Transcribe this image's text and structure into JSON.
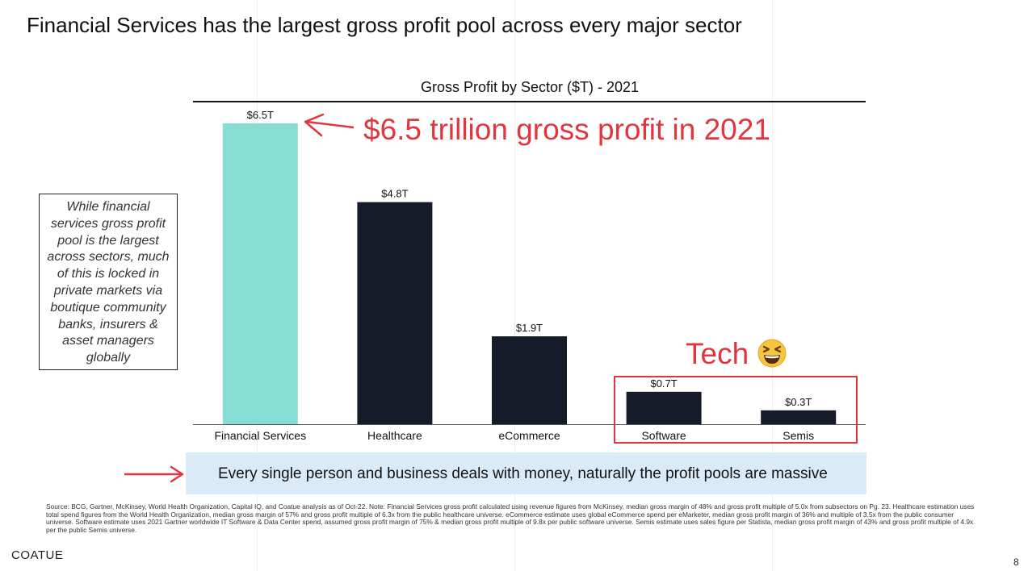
{
  "slide": {
    "title": "Financial Services has the largest gross profit pool across every major sector",
    "page_number": "8",
    "brand": "COATUE",
    "side_note": "While financial services gross profit pool is the largest across sectors, much of this is locked in private markets via boutique community banks, insurers & asset managers globally",
    "annotation": "$6.5 trillion  gross profit in 2021",
    "tech_label": "Tech",
    "tech_emoji": "grinning-squinting-face",
    "callout": "Every single person and business deals with money, naturally the profit pools are massive",
    "source": "Source: BCG, Gartner, McKinsey, World Health Organization, Capital IQ, and Coatue analysis as of Oct-22. Note: Financial Services gross profit calculated using revenue figures from McKinsey, median gross margin of 48% and gross profit multiple of 5.0x from subsectors on Pg. 23. Healthcare estimation uses total spend figures from the World Health Organization, median gross margin of 57% and gross profit multiple of 6.3x from the public healthcare universe. eCommerce estimate uses global eCommerce spend per eMarketer, median gross profit margin of 36% and multiple of 3.5x from the public consumer universe. Software estimate uses 2021 Gartner worldwide IT Software & Data Center spend, assumed gross profit margin of 75% & median gross profit multiple of 9.8x per public software universe. Semis estimate uses sales figure per Statista, median gross profit margin of 43% and gross profit multiple of 4.9x per the public Semis universe."
  },
  "colors": {
    "highlight_bar": "#86ddd4",
    "bar": "#151b29",
    "accent_red": "#e2363f",
    "callout_bg": "#dbeaf7"
  },
  "chart_data": {
    "type": "bar",
    "title": "Gross Profit by Sector ($T) - 2021",
    "categories": [
      "Financial Services",
      "Healthcare",
      "eCommerce",
      "Software",
      "Semis"
    ],
    "values": [
      6.5,
      4.8,
      1.9,
      0.7,
      0.3
    ],
    "data_labels": [
      "$6.5T",
      "$4.8T",
      "$1.9T",
      "$0.7T",
      "$0.3T"
    ],
    "highlight_index": 0,
    "xlabel": "",
    "ylabel": "",
    "ylim": [
      0,
      6.5
    ]
  }
}
